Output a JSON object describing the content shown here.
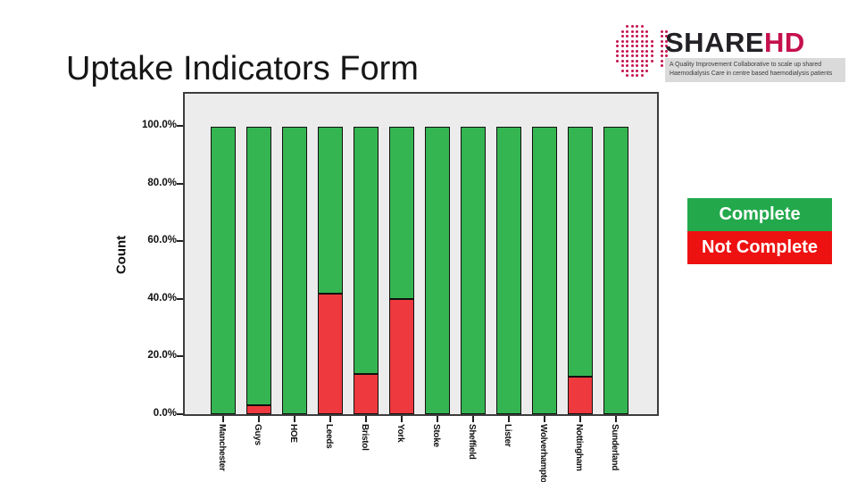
{
  "slide": {
    "title": "Uptake Indicators Form"
  },
  "logo": {
    "brand_primary": "SHARE",
    "brand_accent": "HD",
    "tagline_line1": "A Quality Improvement Collaborative to scale up shared",
    "tagline_line2": "Haemodialysis Care in centre based haemodialysis patients",
    "accent_color": "#c5104c",
    "dot_color": "#c4134d"
  },
  "legend": {
    "items": [
      {
        "label": "Complete",
        "color": "#23a94c"
      },
      {
        "label": "Not Complete",
        "color": "#ee1111"
      }
    ]
  },
  "chart_data": {
    "type": "bar",
    "stacked": true,
    "title": "",
    "xlabel": "",
    "ylabel": "Count",
    "ylim": [
      0,
      100
    ],
    "grid": false,
    "legend_position": "right",
    "plot_background": "#ececec",
    "yticks": [
      {
        "label": "100.0%",
        "value": 100
      },
      {
        "label": "80.0%",
        "value": 80
      },
      {
        "label": "60.0%",
        "value": 60
      },
      {
        "label": "40.0%",
        "value": 40
      },
      {
        "label": "20.0%",
        "value": 20
      },
      {
        "label": "0.0%",
        "value": 0
      }
    ],
    "categories": [
      "Manchester",
      "Guys",
      "HOE",
      "Leeds",
      "Bristol",
      "York",
      "Stoke",
      "Sheffield",
      "Lister",
      "Wolverhampton",
      "Nottingham",
      "Sunderland"
    ],
    "series": [
      {
        "name": "Complete",
        "color": "#35b551",
        "values": [
          100,
          97,
          100,
          58,
          86,
          60,
          100,
          100,
          100,
          100,
          87,
          100
        ]
      },
      {
        "name": "Not Complete",
        "color": "#ee393e",
        "values": [
          0,
          3,
          0,
          42,
          14,
          40,
          0,
          0,
          0,
          0,
          13,
          0
        ]
      }
    ]
  }
}
